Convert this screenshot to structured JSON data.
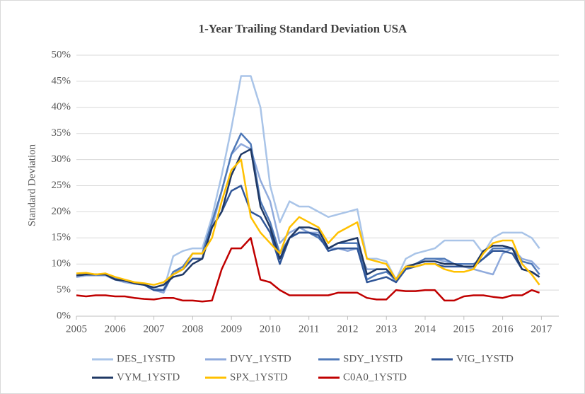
{
  "chart_data": {
    "type": "line",
    "title": "1-Year Trailing Standard Deviation USA",
    "y_label": "Standard Deviation",
    "x": [
      2005,
      2005.25,
      2005.5,
      2005.75,
      2006,
      2006.25,
      2006.5,
      2006.75,
      2007,
      2007.25,
      2007.5,
      2007.75,
      2008,
      2008.25,
      2008.5,
      2008.75,
      2009,
      2009.25,
      2009.5,
      2009.75,
      2010,
      2010.25,
      2010.5,
      2010.75,
      2011,
      2011.25,
      2011.5,
      2011.75,
      2012,
      2012.25,
      2012.5,
      2012.75,
      2013,
      2013.25,
      2013.5,
      2013.75,
      2014,
      2014.25,
      2014.5,
      2014.75,
      2015,
      2015.25,
      2015.5,
      2015.75,
      2016,
      2016.25,
      2016.5,
      2016.75,
      2016.95
    ],
    "series": [
      {
        "name": "DES_1YSTD",
        "color": "#a9c4e8",
        "values": [
          7.5,
          7.8,
          7.8,
          7.8,
          7,
          6.5,
          6.2,
          6,
          5.5,
          5,
          11.5,
          12.5,
          13,
          13,
          19,
          27,
          36,
          46,
          46,
          40,
          25,
          18,
          22,
          21,
          21,
          20,
          19,
          19.5,
          20,
          20.5,
          11,
          11,
          10.5,
          7,
          11,
          12,
          12.5,
          13,
          14.5,
          14.5,
          14.5,
          14.5,
          12,
          15,
          16,
          16,
          16,
          15,
          13
        ]
      },
      {
        "name": "DVY_1YSTD",
        "color": "#8faadc",
        "values": [
          7.5,
          7.8,
          7.8,
          7.8,
          7,
          6.5,
          6.2,
          6,
          5,
          4.5,
          8.5,
          9,
          11,
          11,
          17,
          24,
          31,
          33,
          32,
          26,
          22,
          14,
          16,
          17,
          16,
          16,
          13,
          13,
          12.5,
          13,
          9,
          9,
          9,
          6.5,
          9.5,
          10,
          11,
          11,
          10.5,
          10,
          9.5,
          9,
          8.5,
          8,
          12,
          13,
          11,
          10.5,
          9
        ]
      },
      {
        "name": "SDY_1YSTD",
        "color": "#4f79b8",
        "values": [
          7.8,
          8,
          8,
          8,
          7.2,
          6.8,
          6.4,
          6,
          5,
          5,
          8.5,
          9.5,
          12,
          12,
          18,
          24,
          31,
          35,
          33,
          22,
          18,
          12,
          15,
          16,
          16,
          15,
          13,
          14,
          14,
          14,
          7,
          8,
          8.5,
          7,
          9,
          10,
          11,
          11,
          11,
          10,
          10,
          10,
          11,
          13,
          13,
          13,
          10.5,
          10,
          8
        ]
      },
      {
        "name": "VIG_1YSTD",
        "color": "#2f5597",
        "values": [
          7.8,
          8,
          8,
          8,
          7,
          6.8,
          6.3,
          6,
          5,
          5,
          8,
          9,
          11,
          11,
          17,
          20,
          24,
          25,
          20,
          19,
          16,
          10,
          15,
          16,
          16,
          15.5,
          12.5,
          13,
          13,
          13,
          6.5,
          7,
          7.5,
          6.5,
          9,
          9.5,
          10,
          10,
          9.5,
          9.5,
          9.5,
          9.5,
          11,
          12.5,
          12.5,
          12,
          9,
          8.5,
          7.5
        ]
      },
      {
        "name": "VYM_1YSTD",
        "color": "#1f3864",
        "values": [
          7.8,
          8,
          8,
          8,
          7,
          6.8,
          6.3,
          6,
          5.5,
          6,
          7.5,
          8,
          10,
          11,
          17,
          20,
          27,
          31,
          32,
          21,
          17,
          11,
          15,
          17,
          17,
          16.5,
          13,
          14,
          14.5,
          15,
          8,
          9,
          9,
          7,
          9.5,
          10,
          10.5,
          10.5,
          10,
          10,
          9.5,
          9.5,
          12.5,
          13.5,
          13.5,
          13,
          9,
          8.5,
          7.5
        ]
      },
      {
        "name": "SPX_1YSTD",
        "color": "#ffc000",
        "values": [
          8.2,
          8.3,
          8,
          8.2,
          7.5,
          7,
          6.5,
          6.3,
          6,
          6.5,
          8,
          9,
          12,
          12,
          15,
          22,
          28,
          30,
          19,
          16,
          14,
          12,
          17,
          19,
          18,
          17,
          14,
          16,
          17,
          18,
          11,
          10.5,
          10,
          7,
          9.5,
          9.5,
          10,
          10,
          9,
          8.5,
          8.5,
          9,
          12,
          14,
          14.5,
          14.5,
          10,
          8,
          6
        ]
      },
      {
        "name": "C0A0_1YSTD",
        "color": "#c00000",
        "values": [
          4,
          3.8,
          4,
          4,
          3.8,
          3.8,
          3.5,
          3.3,
          3.2,
          3.5,
          3.5,
          3,
          3,
          2.8,
          3,
          9,
          13,
          13,
          15,
          7,
          6.5,
          5,
          4,
          4,
          4,
          4,
          4,
          4.5,
          4.5,
          4.5,
          3.5,
          3.2,
          3.2,
          5,
          4.8,
          4.8,
          5,
          5,
          3,
          3,
          3.8,
          4,
          4,
          3.7,
          3.5,
          4,
          4,
          5,
          4.5
        ]
      }
    ],
    "xlim": [
      2005,
      2017.45
    ],
    "xticks": [
      2005,
      2006,
      2007,
      2008,
      2009,
      2010,
      2011,
      2012,
      2013,
      2014,
      2015,
      2016,
      2017
    ],
    "ylim": [
      0,
      50
    ],
    "yticks": [
      {
        "value": 0,
        "label": "0%"
      },
      {
        "value": 5,
        "label": "5%"
      },
      {
        "value": 10,
        "label": "10%"
      },
      {
        "value": 15,
        "label": "15%"
      },
      {
        "value": 20,
        "label": "20%"
      },
      {
        "value": 25,
        "label": "25%"
      },
      {
        "value": 30,
        "label": "30%"
      },
      {
        "value": 35,
        "label": "35%"
      },
      {
        "value": 40,
        "label": "40%"
      },
      {
        "value": 45,
        "label": "45%"
      },
      {
        "value": 50,
        "label": "50%"
      }
    ],
    "grid": true
  }
}
